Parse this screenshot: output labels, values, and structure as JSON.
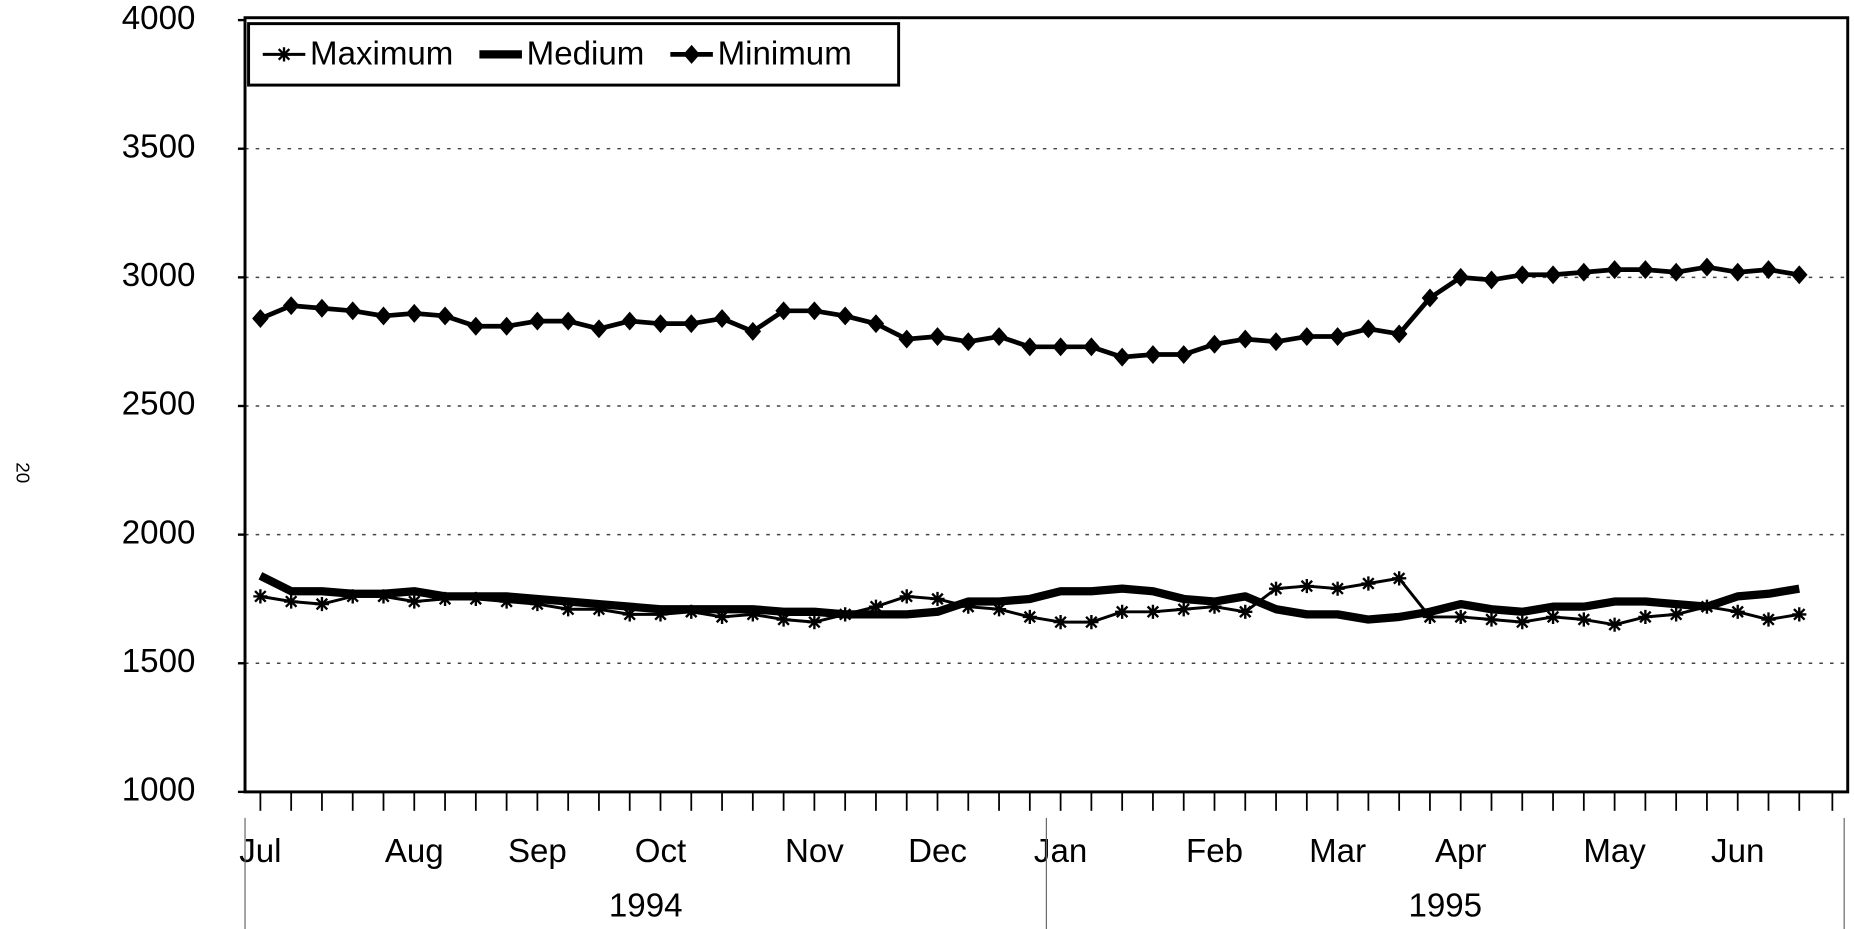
{
  "page_number": "20",
  "chart_data": {
    "type": "line",
    "categories": [
      "Jul",
      null,
      null,
      null,
      null,
      "Aug",
      null,
      null,
      null,
      "Sep",
      null,
      null,
      null,
      "Oct",
      null,
      null,
      null,
      null,
      "Nov",
      null,
      null,
      null,
      "Dec",
      null,
      null,
      null,
      "Jan",
      null,
      null,
      null,
      null,
      "Feb",
      null,
      null,
      null,
      "Mar",
      null,
      null,
      null,
      "Apr",
      null,
      null,
      null,
      null,
      "May",
      null,
      null,
      null,
      "Jun",
      null,
      null
    ],
    "groups": [
      "1994",
      "1995"
    ],
    "series": [
      {
        "name": "Maximum",
        "color": "#000000",
        "marker": "star",
        "values": [
          1760,
          1740,
          1730,
          1760,
          1760,
          1740,
          1750,
          1750,
          1740,
          1730,
          1710,
          1710,
          1690,
          1690,
          1700,
          1680,
          1690,
          1670,
          1660,
          1690,
          1720,
          1760,
          1750,
          1720,
          1710,
          1680,
          1660,
          1660,
          1700,
          1700,
          1710,
          1720,
          1700,
          1790,
          1800,
          1790,
          1810,
          1830,
          1680,
          1680,
          1670,
          1660,
          1680,
          1670,
          1650,
          1680,
          1690,
          1720,
          1700,
          1670,
          1690
        ]
      },
      {
        "name": "Medium",
        "color": "#000000",
        "marker": "none",
        "values": [
          1840,
          1780,
          1780,
          1770,
          1770,
          1780,
          1760,
          1760,
          1760,
          1750,
          1740,
          1730,
          1720,
          1710,
          1710,
          1710,
          1710,
          1700,
          1700,
          1690,
          1690,
          1690,
          1700,
          1740,
          1740,
          1750,
          1780,
          1780,
          1790,
          1780,
          1750,
          1740,
          1760,
          1710,
          1690,
          1690,
          1670,
          1680,
          1700,
          1730,
          1710,
          1700,
          1720,
          1720,
          1740,
          1740,
          1730,
          1720,
          1760,
          1770,
          1790
        ]
      },
      {
        "name": "Minimum",
        "color": "#000000",
        "marker": "diamond",
        "values": [
          2840,
          2890,
          2880,
          2870,
          2850,
          2860,
          2850,
          2810,
          2810,
          2830,
          2830,
          2800,
          2830,
          2820,
          2820,
          2840,
          2790,
          2870,
          2870,
          2850,
          2820,
          2760,
          2770,
          2750,
          2770,
          2730,
          2730,
          2730,
          2690,
          2700,
          2700,
          2740,
          2760,
          2750,
          2770,
          2770,
          2800,
          2780,
          2920,
          3000,
          2990,
          3010,
          3010,
          3020,
          3030,
          3030,
          3020,
          3040,
          3020,
          3030,
          3010
        ]
      }
    ],
    "ylim": [
      1000,
      4000
    ],
    "yticks": [
      1000,
      1500,
      2000,
      2500,
      3000,
      3500,
      4000
    ],
    "grid": true,
    "legend": "top-left"
  }
}
